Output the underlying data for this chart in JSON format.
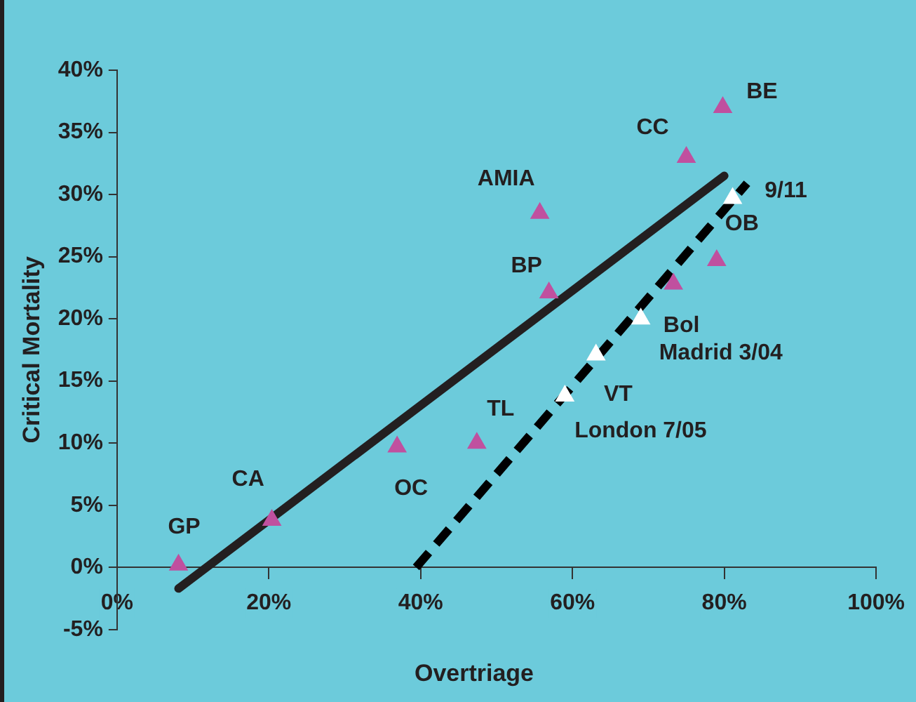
{
  "chart_data": {
    "type": "scatter",
    "xlabel": "Overtriage",
    "ylabel": "Critical Mortality",
    "xlim": [
      0,
      100
    ],
    "ylim": [
      -5,
      40
    ],
    "xticks": [
      {
        "value": 0,
        "label": "0%"
      },
      {
        "value": 20,
        "label": "20%"
      },
      {
        "value": 40,
        "label": "40%"
      },
      {
        "value": 60,
        "label": "60%"
      },
      {
        "value": 80,
        "label": "80%"
      },
      {
        "value": 100,
        "label": "100%"
      }
    ],
    "yticks": [
      {
        "value": -5,
        "label": "-5%"
      },
      {
        "value": 0,
        "label": "0%"
      },
      {
        "value": 5,
        "label": "5%"
      },
      {
        "value": 10,
        "label": "10%"
      },
      {
        "value": 15,
        "label": "15%"
      },
      {
        "value": 20,
        "label": "20%"
      },
      {
        "value": 25,
        "label": "25%"
      },
      {
        "value": 30,
        "label": "30%"
      },
      {
        "value": 35,
        "label": "35%"
      },
      {
        "value": 40,
        "label": "40%"
      }
    ],
    "grid": false,
    "legend": false,
    "series": [
      {
        "type": "scatter",
        "color": "#c0509f",
        "marker": "triangle",
        "x": [
          8.1,
          20.4,
          36.9,
          47.4,
          56.9,
          55.7,
          75,
          79.8,
          79,
          73.3
        ],
        "values": [
          0.2,
          3.8,
          9.7,
          10,
          22.1,
          28.5,
          33,
          37,
          24.7,
          22.8
        ]
      },
      {
        "type": "scatter",
        "color": "#ffffff",
        "marker": "triangle",
        "x": [
          81.1,
          69,
          63.1,
          59
        ],
        "values": [
          29.7,
          20,
          17.1,
          13.8
        ]
      },
      {
        "type": "line",
        "color": "#231f20",
        "marker": "none",
        "line_style": "solid",
        "x": [
          8.1,
          80
        ],
        "values": [
          -1.7,
          31.5
        ]
      },
      {
        "type": "line",
        "color": "#000000",
        "marker": "none",
        "line_style": "dashed",
        "x": [
          39.4,
          83
        ],
        "values": [
          0,
          30.9
        ]
      }
    ],
    "annotations": [
      {
        "text": "BE",
        "x": 79.8,
        "y": 37
      },
      {
        "text": "CC",
        "x": 75,
        "y": 33
      },
      {
        "text": "AMIA",
        "x": 55.7,
        "y": 28.5
      },
      {
        "text": "BP",
        "x": 56.9,
        "y": 22.1
      },
      {
        "text": "9/11",
        "x": 81.1,
        "y": 29.7
      },
      {
        "text": "OB",
        "x": 79,
        "y": 24.7
      },
      {
        "text": "Bol",
        "x": 69,
        "y": 20
      },
      {
        "text": "Madrid 3/04",
        "x": 63.1,
        "y": 17.1
      },
      {
        "text": "VT",
        "x": 59,
        "y": 13.8
      },
      {
        "text": "London 7/05",
        "x": 59,
        "y": 13.8
      },
      {
        "text": "TL",
        "x": 47.4,
        "y": 10
      },
      {
        "text": "OC",
        "x": 36.9,
        "y": 9.7
      },
      {
        "text": "CA",
        "x": 20.4,
        "y": 3.8
      },
      {
        "text": "GP",
        "x": 8.1,
        "y": 0.2
      }
    ]
  }
}
